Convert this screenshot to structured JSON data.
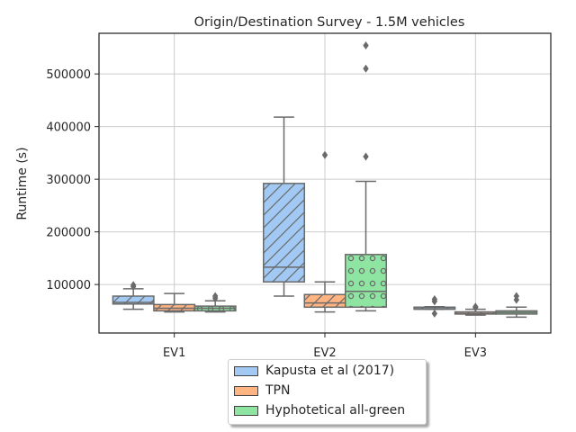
{
  "chart_data": {
    "type": "box",
    "title": "Origin/Destination Survey - 1.5M vehicles",
    "xlabel": "",
    "ylabel": "Runtime (s)",
    "ylim": [
      10000,
      580000
    ],
    "yticks": [
      100000,
      200000,
      300000,
      400000,
      500000
    ],
    "grid": true,
    "legend_position": "below-center",
    "categories": [
      "EV1",
      "EV2",
      "EV3"
    ],
    "series": [
      {
        "name": "Kapusta et al (2017)",
        "color": "#a1c9f4",
        "hatch": "diagonal",
        "boxes": [
          {
            "whisker_low": 53000,
            "q1": 63000,
            "median": 66000,
            "q3": 78000,
            "whisker_high": 92000,
            "outliers": [
              99000,
              96000
            ]
          },
          {
            "whisker_low": 78000,
            "q1": 105000,
            "median": 133000,
            "q3": 292000,
            "whisker_high": 418000,
            "outliers": []
          },
          {
            "whisker_low": 53000,
            "q1": 53000,
            "median": 56000,
            "q3": 57000,
            "whisker_high": 58000,
            "outliers": [
              72000,
              68000,
              45000
            ]
          }
        ]
      },
      {
        "name": "TPN",
        "color": "#ffb482",
        "hatch": "diagonal",
        "boxes": [
          {
            "whisker_low": 48000,
            "q1": 50000,
            "median": 55000,
            "q3": 62000,
            "whisker_high": 83000,
            "outliers": []
          },
          {
            "whisker_low": 48000,
            "q1": 57000,
            "median": 65000,
            "q3": 81000,
            "whisker_high": 105000,
            "outliers": [
              346000
            ]
          },
          {
            "whisker_low": 42000,
            "q1": 44000,
            "median": 45000,
            "q3": 48000,
            "whisker_high": 53000,
            "outliers": [
              58000,
              56000
            ]
          }
        ]
      },
      {
        "name": "Hyphotetical all-green",
        "color": "#8de5a1",
        "hatch": "circles",
        "boxes": [
          {
            "whisker_low": 48000,
            "q1": 50000,
            "median": 55000,
            "q3": 59000,
            "whisker_high": 69000,
            "outliers": [
              78000,
              74000
            ]
          },
          {
            "whisker_low": 50000,
            "q1": 57000,
            "median": 87000,
            "q3": 157000,
            "whisker_high": 296000,
            "outliers": [
              343000,
              510000,
              554000
            ]
          },
          {
            "whisker_low": 38000,
            "q1": 44000,
            "median": 47000,
            "q3": 50000,
            "whisker_high": 57000,
            "outliers": [
              78000,
              71000
            ]
          }
        ]
      }
    ]
  }
}
